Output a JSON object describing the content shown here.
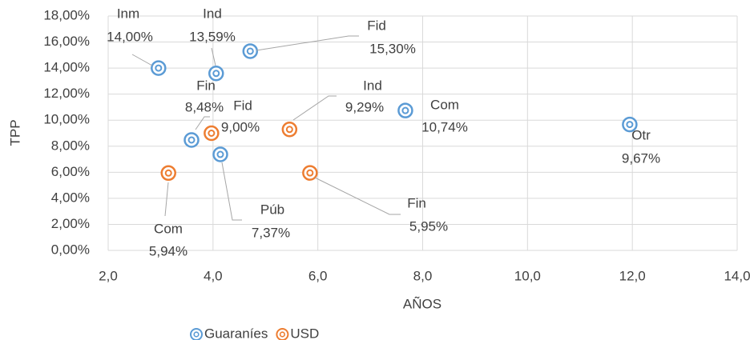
{
  "chart_data": {
    "type": "scatter",
    "xlabel": "AÑOS",
    "ylabel": "TPP",
    "xlim": [
      2,
      14
    ],
    "xticks": [
      {
        "value": 2,
        "label": "2,0"
      },
      {
        "value": 4,
        "label": "4,0"
      },
      {
        "value": 6,
        "label": "6,0"
      },
      {
        "value": 8,
        "label": "8,0"
      },
      {
        "value": 10,
        "label": "10,0"
      },
      {
        "value": 12,
        "label": "12,0"
      },
      {
        "value": 14,
        "label": "14,0"
      }
    ],
    "ylim": [
      0,
      18
    ],
    "yticks": [
      {
        "value": 0,
        "label": "0,00%"
      },
      {
        "value": 2,
        "label": "2,00%"
      },
      {
        "value": 4,
        "label": "4,00%"
      },
      {
        "value": 6,
        "label": "6,00%"
      },
      {
        "value": 8,
        "label": "8,00%"
      },
      {
        "value": 10,
        "label": "10,00%"
      },
      {
        "value": 12,
        "label": "12,00%"
      },
      {
        "value": 14,
        "label": "14,00%"
      },
      {
        "value": 16,
        "label": "16,00%"
      },
      {
        "value": 18,
        "label": "18,00%"
      }
    ],
    "grid": true,
    "legend": "bottom",
    "series": [
      {
        "name": "Guaraníes",
        "color": "#5b9bd5",
        "x": [
          2.96,
          4.06,
          4.71,
          7.67,
          3.59,
          4.14,
          11.95
        ],
        "values": [
          14.0,
          13.59,
          15.3,
          10.74,
          8.48,
          7.37,
          9.67
        ],
        "labels": [
          "Inm",
          "Ind",
          "Fid",
          "Com",
          "Fin",
          "Púb",
          "Otr"
        ],
        "value_labels": [
          "14,00%",
          "13,59%",
          "15,30%",
          "10,74%",
          "8,48%",
          "7,37%",
          "9,67%"
        ]
      },
      {
        "name": "USD",
        "color": "#ed7d31",
        "x": [
          3.97,
          5.46,
          3.15,
          5.85
        ],
        "values": [
          9.0,
          9.29,
          5.94,
          5.95
        ],
        "labels": [
          "Fid",
          "Ind",
          "Com",
          "Fin"
        ],
        "value_labels": [
          "9,00%",
          "9,29%",
          "5,94%",
          "5,95%"
        ]
      }
    ]
  }
}
